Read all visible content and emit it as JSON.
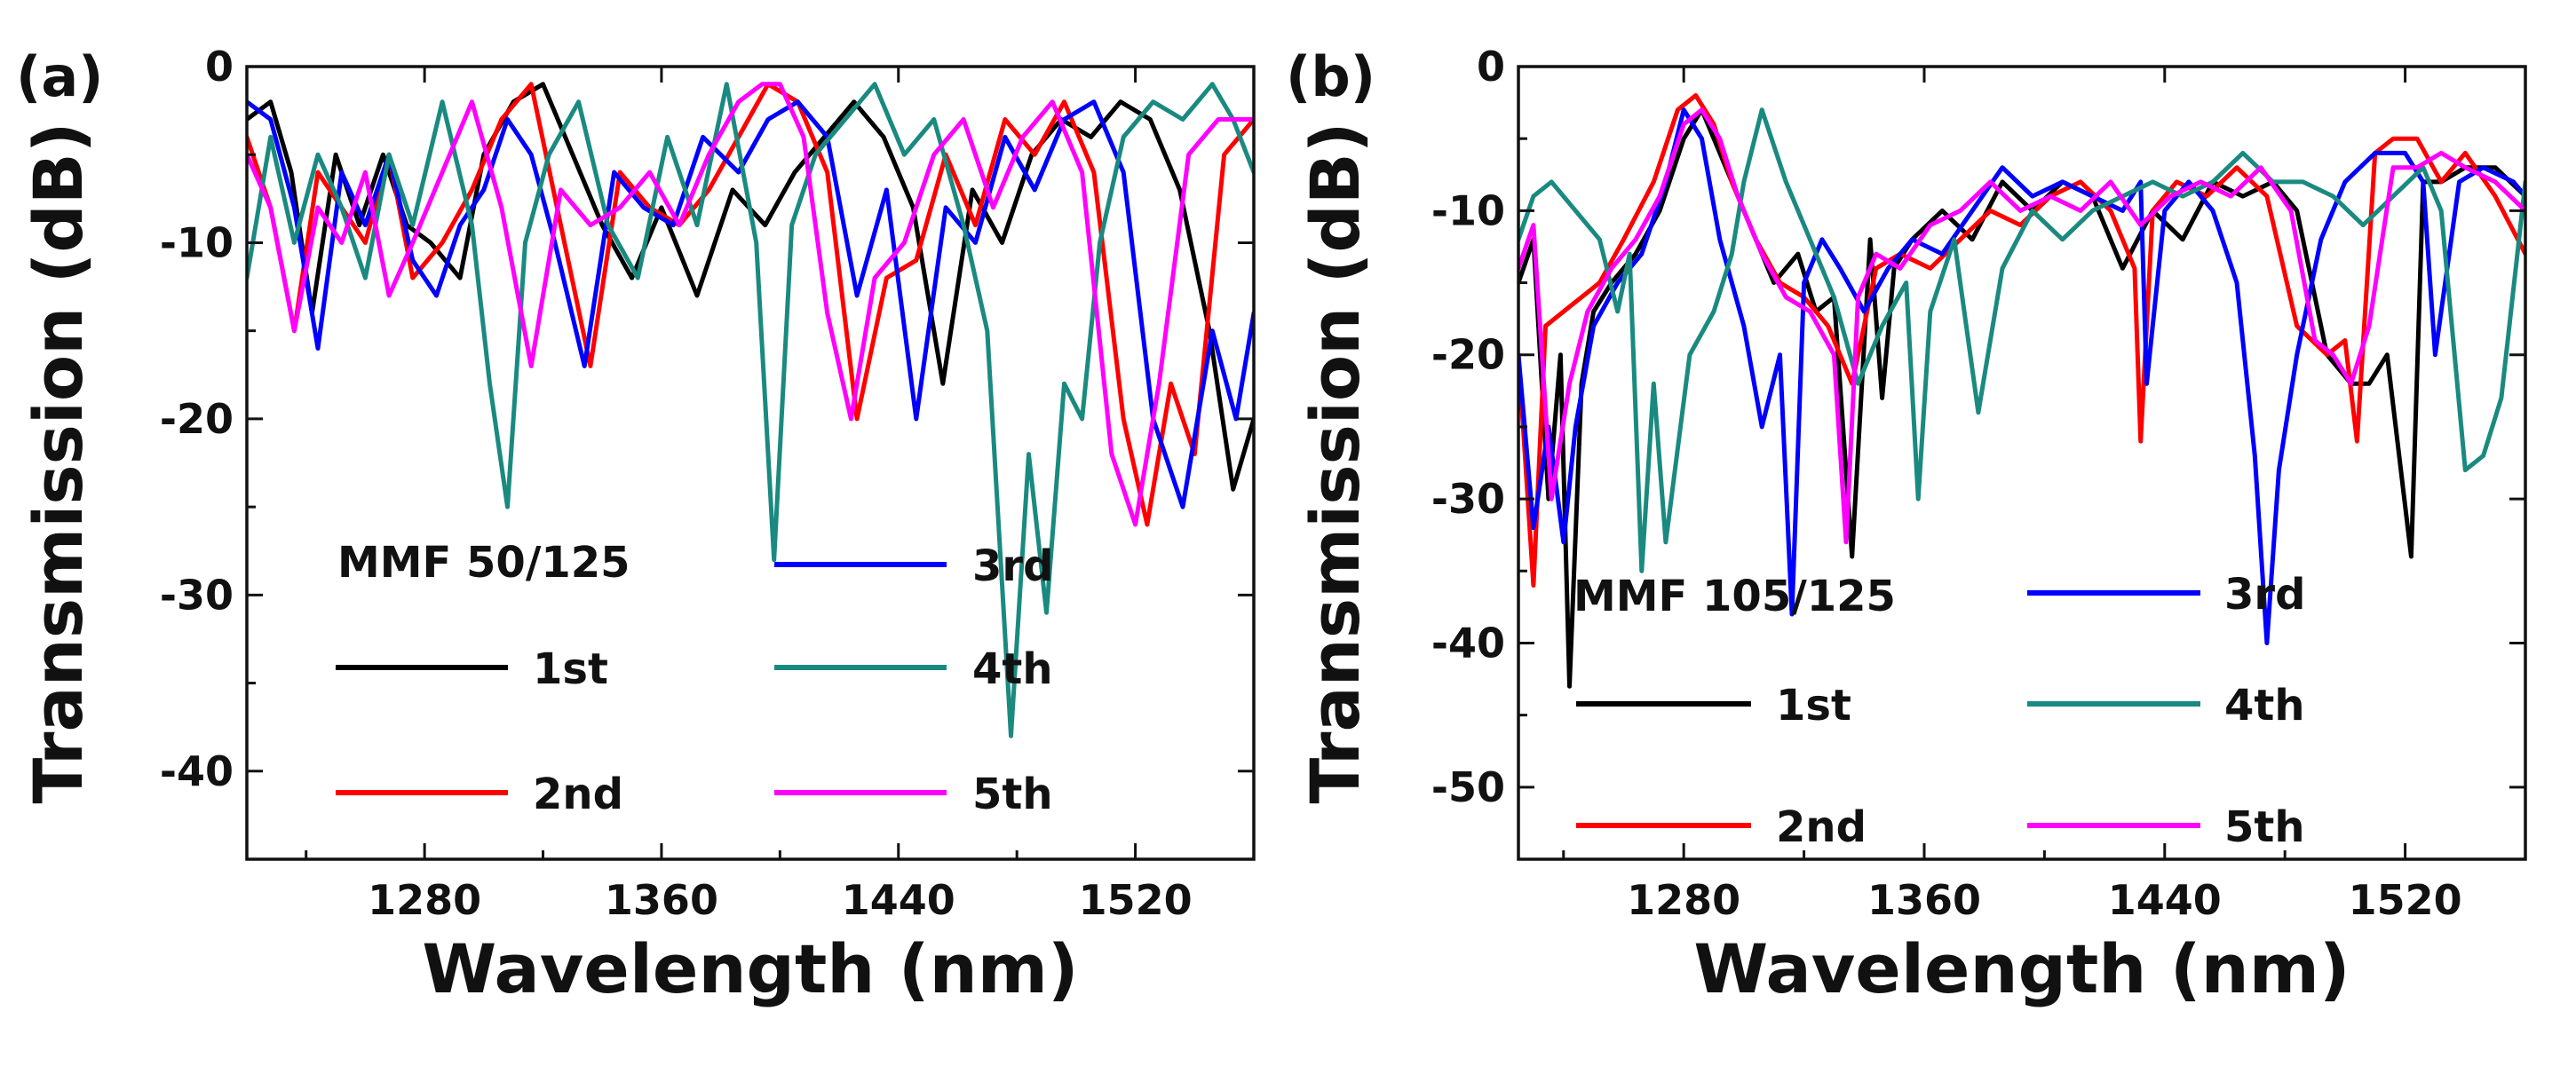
{
  "chart_data": [
    {
      "panel_label": "(a)",
      "type": "line",
      "xlabel": "Wavelength (nm)",
      "ylabel": "Transmission (dB)",
      "xlim": [
        1220,
        1560
      ],
      "ylim": [
        -45,
        0
      ],
      "xticks": [
        1280,
        1360,
        1440,
        1520
      ],
      "xtick_labels": [
        "1280",
        "1360",
        "1440",
        "1520"
      ],
      "yticks": [
        0,
        -10,
        -20,
        -30,
        -40
      ],
      "ytick_labels": [
        "0",
        "-10",
        "-20",
        "-30",
        "-40"
      ],
      "legend_title": "MMF 50/125",
      "legend_position": "inside lower-left",
      "series": [
        {
          "name": "1st",
          "color": "#000000",
          "x": [
            1220,
            1228,
            1235,
            1242,
            1250,
            1258,
            1266,
            1274,
            1282,
            1292,
            1300,
            1310,
            1320,
            1330,
            1340,
            1350,
            1360,
            1372,
            1384,
            1395,
            1405,
            1415,
            1425,
            1435,
            1445,
            1455,
            1465,
            1475,
            1485,
            1495,
            1505,
            1515,
            1525,
            1535,
            1545,
            1553,
            1560
          ],
          "y": [
            -3,
            -2,
            -6,
            -14,
            -5,
            -9,
            -5,
            -9,
            -10,
            -12,
            -5,
            -2,
            -1,
            -5,
            -9,
            -12,
            -8,
            -13,
            -7,
            -9,
            -6,
            -4,
            -2,
            -4,
            -8,
            -18,
            -7,
            -10,
            -5,
            -3,
            -4,
            -2,
            -3,
            -7,
            -15,
            -24,
            -20
          ]
        },
        {
          "name": "2nd",
          "color": "#ff0000",
          "x": [
            1220,
            1228,
            1236,
            1244,
            1252,
            1260,
            1268,
            1276,
            1286,
            1296,
            1306,
            1316,
            1326,
            1336,
            1346,
            1356,
            1366,
            1376,
            1386,
            1396,
            1406,
            1416,
            1426,
            1436,
            1446,
            1456,
            1466,
            1476,
            1486,
            1496,
            1506,
            1516,
            1524,
            1532,
            1540,
            1550,
            1560
          ],
          "y": [
            -4,
            -8,
            -15,
            -6,
            -8,
            -10,
            -5,
            -12,
            -10,
            -7,
            -3,
            -1,
            -9,
            -17,
            -6,
            -8,
            -9,
            -7,
            -4,
            -1,
            -2,
            -6,
            -20,
            -12,
            -11,
            -5,
            -9,
            -3,
            -5,
            -2,
            -6,
            -20,
            -26,
            -18,
            -22,
            -5,
            -3
          ]
        },
        {
          "name": "3rd",
          "color": "#0000ff",
          "x": [
            1220,
            1228,
            1236,
            1244,
            1252,
            1260,
            1268,
            1276,
            1284,
            1292,
            1300,
            1308,
            1316,
            1324,
            1334,
            1344,
            1354,
            1364,
            1374,
            1386,
            1396,
            1406,
            1416,
            1426,
            1436,
            1446,
            1456,
            1466,
            1476,
            1486,
            1496,
            1506,
            1516,
            1526,
            1536,
            1546,
            1554,
            1560
          ],
          "y": [
            -2,
            -3,
            -8,
            -16,
            -6,
            -9,
            -5,
            -11,
            -13,
            -9,
            -7,
            -3,
            -5,
            -10,
            -17,
            -6,
            -8,
            -9,
            -4,
            -6,
            -3,
            -2,
            -4,
            -13,
            -7,
            -20,
            -8,
            -10,
            -4,
            -7,
            -3,
            -2,
            -6,
            -20,
            -25,
            -15,
            -20,
            -14
          ]
        },
        {
          "name": "4th",
          "color": "#1a8a80",
          "x": [
            1220,
            1228,
            1236,
            1244,
            1252,
            1260,
            1268,
            1276,
            1286,
            1296,
            1302,
            1308,
            1314,
            1322,
            1332,
            1342,
            1352,
            1362,
            1372,
            1382,
            1392,
            1398,
            1404,
            1412,
            1422,
            1432,
            1442,
            1452,
            1462,
            1470,
            1478,
            1484,
            1490,
            1496,
            1502,
            1508,
            1516,
            1526,
            1536,
            1546,
            1553,
            1560
          ],
          "y": [
            -12,
            -4,
            -10,
            -5,
            -8,
            -12,
            -5,
            -9,
            -2,
            -9,
            -18,
            -25,
            -10,
            -5,
            -2,
            -9,
            -12,
            -4,
            -9,
            -1,
            -10,
            -28,
            -9,
            -5,
            -3,
            -1,
            -5,
            -3,
            -9,
            -15,
            -38,
            -22,
            -31,
            -18,
            -20,
            -10,
            -4,
            -2,
            -3,
            -1,
            -3,
            -6
          ]
        },
        {
          "name": "5th",
          "color": "#ff00ff",
          "x": [
            1220,
            1228,
            1236,
            1244,
            1252,
            1260,
            1268,
            1276,
            1286,
            1296,
            1306,
            1316,
            1326,
            1336,
            1346,
            1356,
            1366,
            1376,
            1386,
            1394,
            1400,
            1408,
            1416,
            1424,
            1432,
            1442,
            1452,
            1462,
            1472,
            1482,
            1492,
            1502,
            1512,
            1520,
            1528,
            1538,
            1548,
            1560
          ],
          "y": [
            -5,
            -8,
            -15,
            -8,
            -10,
            -6,
            -13,
            -10,
            -6,
            -2,
            -8,
            -17,
            -7,
            -9,
            -8,
            -6,
            -9,
            -5,
            -2,
            -1,
            -1,
            -4,
            -14,
            -20,
            -12,
            -10,
            -5,
            -3,
            -8,
            -4,
            -2,
            -6,
            -22,
            -26,
            -18,
            -5,
            -3,
            -3
          ]
        }
      ]
    },
    {
      "panel_label": "(b)",
      "type": "line",
      "xlabel": "Wavelength (nm)",
      "ylabel": "Transmission (dB)",
      "xlim": [
        1225,
        1560
      ],
      "ylim": [
        -55,
        0
      ],
      "xticks": [
        1280,
        1360,
        1440,
        1520
      ],
      "xtick_labels": [
        "1280",
        "1360",
        "1440",
        "1520"
      ],
      "yticks": [
        0,
        -10,
        -20,
        -30,
        -40,
        -50
      ],
      "ytick_labels": [
        "0",
        "-10",
        "-20",
        "-30",
        "-40",
        "-50"
      ],
      "legend_title": "MMF 105/125",
      "legend_position": "inside lower-left",
      "series": [
        {
          "name": "1st",
          "color": "#000000",
          "x": [
            1225,
            1230,
            1235,
            1239,
            1242,
            1246,
            1250,
            1256,
            1264,
            1272,
            1280,
            1286,
            1292,
            1300,
            1310,
            1318,
            1324,
            1330,
            1336,
            1342,
            1346,
            1350,
            1356,
            1366,
            1376,
            1386,
            1396,
            1406,
            1416,
            1426,
            1436,
            1446,
            1456,
            1466,
            1476,
            1484,
            1494,
            1502,
            1508,
            1514,
            1522,
            1526,
            1532,
            1540,
            1550,
            1560
          ],
          "y": [
            -15,
            -12,
            -30,
            -20,
            -43,
            -22,
            -17,
            -15,
            -13,
            -10,
            -5,
            -3,
            -6,
            -10,
            -15,
            -13,
            -17,
            -16,
            -34,
            -12,
            -23,
            -14,
            -12,
            -10,
            -12,
            -8,
            -10,
            -8,
            -9,
            -14,
            -10,
            -12,
            -8,
            -9,
            -8,
            -10,
            -20,
            -22,
            -22,
            -20,
            -34,
            -8,
            -8,
            -7,
            -7,
            -9
          ]
        },
        {
          "name": "2nd",
          "color": "#ff0000",
          "x": [
            1225,
            1230,
            1234,
            1240,
            1246,
            1252,
            1260,
            1270,
            1278,
            1284,
            1290,
            1296,
            1304,
            1312,
            1320,
            1328,
            1336,
            1344,
            1352,
            1362,
            1372,
            1382,
            1392,
            1402,
            1412,
            1422,
            1430,
            1432,
            1436,
            1444,
            1454,
            1464,
            1474,
            1484,
            1494,
            1500,
            1504,
            1510,
            1516,
            1524,
            1532,
            1540,
            1550,
            1560
          ],
          "y": [
            -20,
            -36,
            -18,
            -17,
            -16,
            -15,
            -12,
            -8,
            -3,
            -2,
            -4,
            -8,
            -12,
            -15,
            -16,
            -18,
            -22,
            -14,
            -13,
            -14,
            -12,
            -10,
            -11,
            -9,
            -8,
            -10,
            -14,
            -26,
            -10,
            -8,
            -9,
            -7,
            -9,
            -18,
            -20,
            -19,
            -26,
            -6,
            -5,
            -5,
            -8,
            -6,
            -9,
            -13
          ]
        },
        {
          "name": "3rd",
          "color": "#0000ff",
          "x": [
            1225,
            1230,
            1235,
            1240,
            1244,
            1250,
            1258,
            1266,
            1274,
            1280,
            1286,
            1292,
            1300,
            1306,
            1312,
            1316,
            1320,
            1326,
            1332,
            1340,
            1348,
            1356,
            1366,
            1376,
            1386,
            1396,
            1406,
            1416,
            1426,
            1432,
            1434,
            1440,
            1448,
            1456,
            1464,
            1470,
            1474,
            1478,
            1484,
            1492,
            1500,
            1510,
            1520,
            1526,
            1530,
            1538,
            1546,
            1556,
            1560
          ],
          "y": [
            -20,
            -32,
            -25,
            -33,
            -25,
            -18,
            -15,
            -13,
            -8,
            -3,
            -5,
            -12,
            -18,
            -25,
            -20,
            -38,
            -15,
            -12,
            -14,
            -17,
            -14,
            -12,
            -13,
            -10,
            -7,
            -9,
            -8,
            -9,
            -10,
            -8,
            -22,
            -10,
            -8,
            -10,
            -15,
            -27,
            -40,
            -28,
            -20,
            -12,
            -8,
            -6,
            -6,
            -8,
            -20,
            -8,
            -7,
            -8,
            -9
          ]
        },
        {
          "name": "4th",
          "color": "#1a8a80",
          "x": [
            1225,
            1230,
            1236,
            1244,
            1252,
            1258,
            1262,
            1266,
            1270,
            1274,
            1282,
            1290,
            1296,
            1300,
            1306,
            1314,
            1322,
            1330,
            1338,
            1346,
            1354,
            1358,
            1362,
            1370,
            1378,
            1386,
            1396,
            1406,
            1416,
            1426,
            1436,
            1446,
            1456,
            1466,
            1476,
            1486,
            1496,
            1506,
            1516,
            1526,
            1532,
            1540,
            1546,
            1552,
            1560
          ],
          "y": [
            -12,
            -9,
            -8,
            -10,
            -12,
            -17,
            -13,
            -35,
            -22,
            -33,
            -20,
            -17,
            -13,
            -8,
            -3,
            -8,
            -12,
            -16,
            -22,
            -18,
            -15,
            -30,
            -17,
            -12,
            -24,
            -14,
            -10,
            -12,
            -10,
            -9,
            -8,
            -9,
            -8,
            -6,
            -8,
            -8,
            -9,
            -11,
            -9,
            -7,
            -10,
            -28,
            -27,
            -23,
            -8
          ]
        },
        {
          "name": "5th",
          "color": "#ff00ff",
          "x": [
            1225,
            1230,
            1236,
            1242,
            1248,
            1256,
            1264,
            1272,
            1280,
            1286,
            1292,
            1298,
            1306,
            1314,
            1322,
            1330,
            1334,
            1338,
            1344,
            1352,
            1362,
            1372,
            1382,
            1392,
            1402,
            1412,
            1422,
            1432,
            1442,
            1452,
            1462,
            1472,
            1482,
            1490,
            1496,
            1502,
            1508,
            1516,
            1524,
            1532,
            1540,
            1550,
            1560
          ],
          "y": [
            -14,
            -11,
            -30,
            -22,
            -17,
            -14,
            -12,
            -9,
            -4,
            -3,
            -5,
            -9,
            -13,
            -16,
            -17,
            -20,
            -33,
            -16,
            -13,
            -14,
            -11,
            -10,
            -8,
            -10,
            -9,
            -10,
            -8,
            -11,
            -9,
            -8,
            -9,
            -7,
            -10,
            -19,
            -20,
            -22,
            -18,
            -7,
            -7,
            -6,
            -7,
            -8,
            -10
          ]
        }
      ]
    }
  ]
}
